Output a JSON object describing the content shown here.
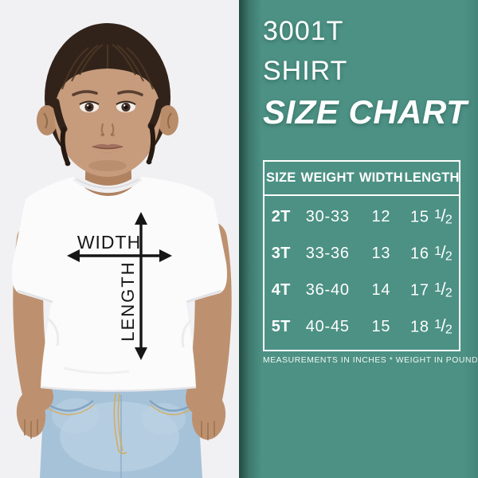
{
  "photo": {
    "width_label": "WIDTH",
    "length_label": "LENGTH"
  },
  "panel": {
    "title_line1": "3001T",
    "title_line2": "SHIRT",
    "title_line3": "SIZE CHART",
    "footnote": "MEASUREMENTS IN INCHES * WEIGHT IN POUNDS",
    "colors": {
      "background": "#4c9184",
      "text": "#ffffff",
      "arrow": "#161616"
    }
  },
  "size_table": {
    "columns": [
      "SIZE",
      "WEIGHT",
      "WIDTH",
      "LENGTH"
    ],
    "rows": [
      {
        "size": "2T",
        "weight": "30-33",
        "width": "12",
        "length": "15 1/2"
      },
      {
        "size": "3T",
        "weight": "33-36",
        "width": "13",
        "length": "16 1/2"
      },
      {
        "size": "4T",
        "weight": "36-40",
        "width": "14",
        "length": "17 1/2"
      },
      {
        "size": "5T",
        "weight": "40-45",
        "width": "15",
        "length": "18 1/2"
      }
    ]
  }
}
